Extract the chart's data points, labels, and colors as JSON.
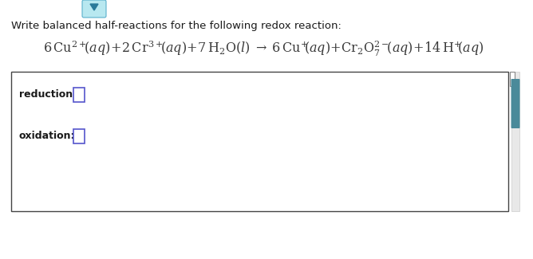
{
  "background_color": "#ffffff",
  "instruction_text": "Write balanced half-reactions for the following redox reaction:",
  "instruction_color": "#1a1a1a",
  "instruction_fontsize": 9.5,
  "equation_color": "#3a3a3a",
  "reduction_label": "reduction:",
  "oxidation_label": "oxidation:",
  "label_fontsize": 9,
  "label_color": "#1a1a1a",
  "input_box_color": "#5555cc",
  "scrollbar_color": "#4a8a9a",
  "nav_bg_color": "#b8e8f0",
  "nav_arrow_color": "#2a7a9a",
  "nav_border_color": "#5ab0cc"
}
